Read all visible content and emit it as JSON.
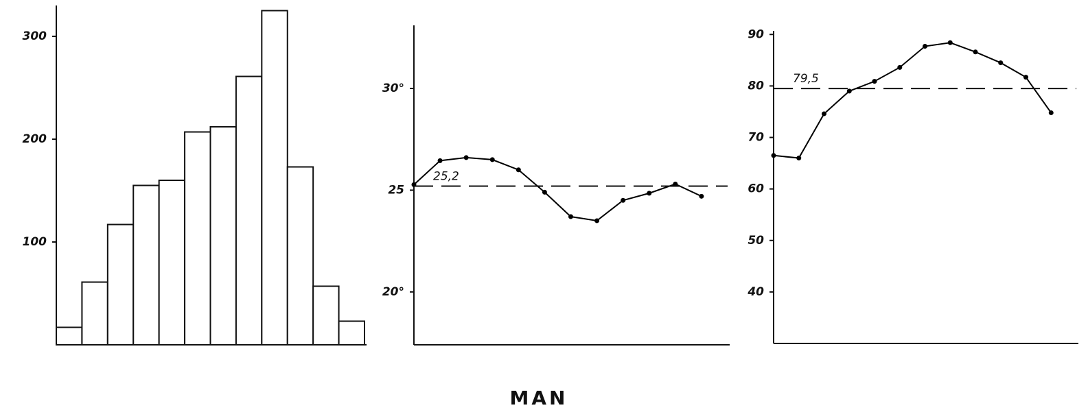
{
  "title": "MAN",
  "chart_data": [
    {
      "type": "bar",
      "color": "#ffffff",
      "categories": [
        null,
        null,
        null,
        null,
        null,
        null,
        null,
        null,
        null,
        null,
        null,
        null
      ],
      "values": [
        17,
        61,
        117,
        155,
        160,
        207,
        212,
        261,
        325,
        173,
        57,
        23
      ],
      "ylim": [
        0,
        330
      ],
      "yticks": [
        100,
        200,
        300
      ]
    },
    {
      "type": "line",
      "color": "#000000",
      "categories": [
        null,
        null,
        null,
        null,
        null,
        null,
        null,
        null,
        null,
        null,
        null,
        null
      ],
      "values": [
        25.27,
        26.45,
        26.6,
        26.5,
        26.0,
        24.9,
        23.7,
        23.5,
        24.5,
        24.85,
        25.3,
        24.7
      ],
      "ylim": [
        17.4,
        33.1
      ],
      "yticks": [
        {
          "value": 20,
          "label": "20°"
        },
        25,
        {
          "value": 30,
          "label": "30°"
        }
      ],
      "hline": {
        "value": 25.2,
        "label": "25,2"
      }
    },
    {
      "type": "line",
      "color": "#000000",
      "categories": [
        null,
        null,
        null,
        null,
        null,
        null,
        null,
        null,
        null,
        null,
        null,
        null
      ],
      "values": [
        66.5,
        66.0,
        74.6,
        79.0,
        80.9,
        83.6,
        87.7,
        88.4,
        86.6,
        84.5,
        81.7,
        74.8
      ],
      "ylim": [
        30,
        90.7
      ],
      "yticks": [
        40,
        50,
        60,
        70,
        80,
        90
      ],
      "hline": {
        "value": 79.5,
        "label": "79,5"
      }
    }
  ]
}
